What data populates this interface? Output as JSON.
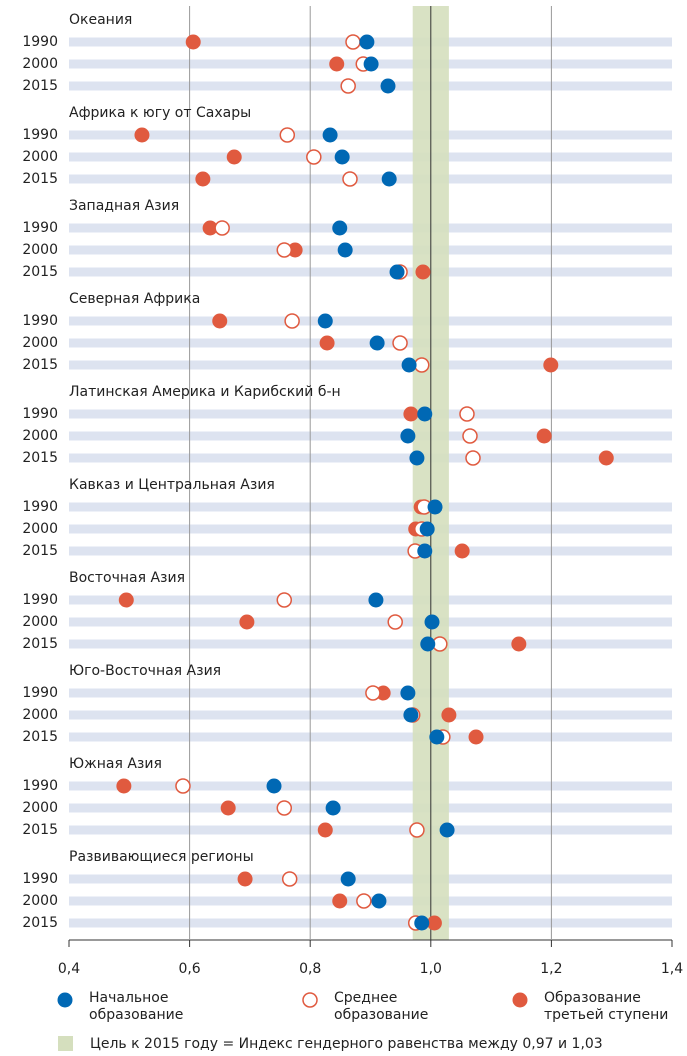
{
  "chart_data": {
    "type": "dot",
    "categories": [
      "Океания",
      "Африка к югу от Сахары",
      "Западная Азия",
      "Северная Африка",
      "Латинская Америка и Карибский б-н",
      "Кавказ и Центральная Азия",
      "Восточная Азия",
      "Юго-Восточная Азия",
      "Южная Азия",
      "Развивающиеся регионы"
    ],
    "years": [
      "1990",
      "2000",
      "2015"
    ],
    "series": [
      {
        "name": "Образование третьей ступени",
        "color": "#e05a3f",
        "filled": true,
        "values": [
          [
            0.606,
            0.844,
            null
          ],
          [
            0.521,
            0.674,
            0.622
          ],
          [
            0.634,
            0.775,
            0.987
          ],
          [
            0.65,
            0.828,
            1.199
          ],
          [
            0.967,
            1.188,
            1.291
          ],
          [
            0.984,
            0.975,
            1.052
          ],
          [
            0.495,
            0.695,
            1.146
          ],
          [
            0.921,
            1.03,
            1.075
          ],
          [
            0.491,
            0.664,
            0.825
          ],
          [
            0.692,
            0.849,
            1.006
          ]
        ]
      },
      {
        "name": "Среднее образование",
        "color": "#e05a3f",
        "filled": false,
        "values": [
          [
            0.871,
            0.888,
            0.863
          ],
          [
            0.762,
            0.806,
            0.866
          ],
          [
            0.654,
            0.757,
            0.949
          ],
          [
            0.77,
            0.949,
            0.985
          ],
          [
            1.06,
            1.065,
            1.07
          ],
          [
            0.989,
            0.985,
            0.974
          ],
          [
            0.757,
            0.941,
            1.015
          ],
          [
            0.904,
            0.97,
            1.02
          ],
          [
            0.589,
            0.757,
            0.977
          ],
          [
            0.766,
            0.889,
            0.975
          ]
        ]
      },
      {
        "name": "Начальное образование",
        "color": "#0068b4",
        "filled": true,
        "values": [
          [
            0.894,
            0.901,
            0.929
          ],
          [
            0.833,
            0.853,
            0.931
          ],
          [
            0.849,
            0.858,
            0.944
          ],
          [
            0.825,
            0.911,
            0.964
          ],
          [
            0.99,
            0.962,
            0.977
          ],
          [
            1.007,
            0.994,
            0.99
          ],
          [
            0.909,
            1.002,
            0.995
          ],
          [
            0.962,
            0.967,
            1.01
          ],
          [
            0.74,
            0.838,
            1.027
          ],
          [
            0.863,
            0.914,
            0.985
          ]
        ]
      }
    ],
    "legend_order": [
      2,
      1,
      0
    ],
    "xlim": [
      0.4,
      1.4
    ],
    "xticks": [
      {
        "value": 0.4,
        "label": "0,4"
      },
      {
        "value": 0.6,
        "label": "0,6"
      },
      {
        "value": 0.8,
        "label": "0,8"
      },
      {
        "value": 1.0,
        "label": "1,0"
      },
      {
        "value": 1.2,
        "label": "1,2"
      },
      {
        "value": 1.4,
        "label": "1,4"
      }
    ],
    "target": [
      0.97,
      1.03
    ],
    "target_color": "#d5dfbe",
    "target_label": "Цель к 2015 году = Индекс гендерного равенства между 0,97 и 1,03",
    "grid": true
  }
}
